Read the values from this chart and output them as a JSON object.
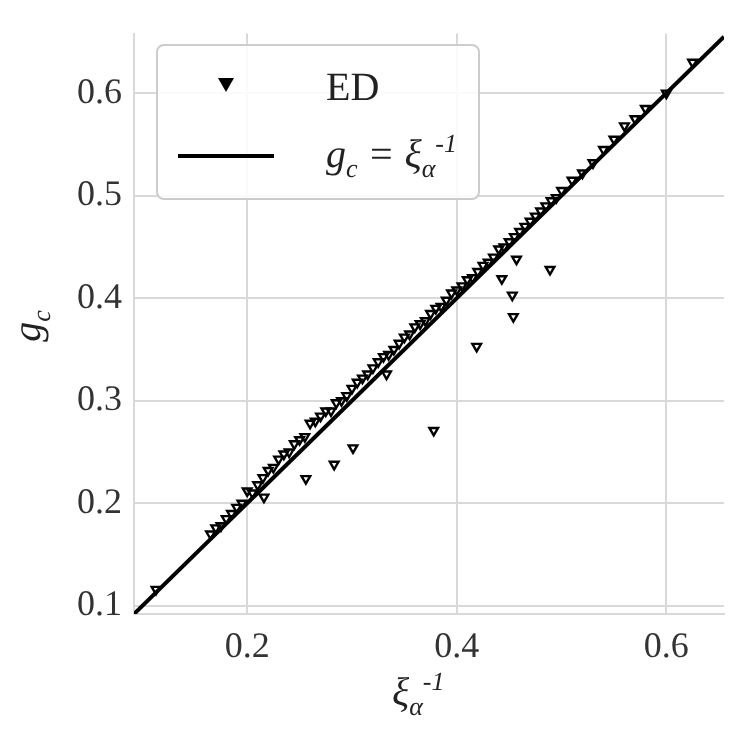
{
  "chart_data": {
    "type": "scatter",
    "xlabel": "ξ$_{α}$$^{-1}$",
    "ylabel": "g$_{c}$",
    "xlim": [
      0.092,
      0.655
    ],
    "ylim": [
      0.092,
      0.658
    ],
    "xticks": [
      0.2,
      0.4,
      0.6
    ],
    "yticks": [
      0.1,
      0.2,
      0.3,
      0.4,
      0.5,
      0.6
    ],
    "grid": true,
    "legend": "top left",
    "series": [
      {
        "name": "ED",
        "marker": "triangle",
        "color": "#000000",
        "x": [
          0.113,
          0.165,
          0.17,
          0.175,
          0.18,
          0.185,
          0.19,
          0.195,
          0.2,
          0.205,
          0.21,
          0.215,
          0.22,
          0.225,
          0.23,
          0.235,
          0.24,
          0.245,
          0.25,
          0.255,
          0.26,
          0.265,
          0.27,
          0.275,
          0.28,
          0.285,
          0.29,
          0.295,
          0.3,
          0.305,
          0.31,
          0.315,
          0.32,
          0.325,
          0.33,
          0.335,
          0.34,
          0.345,
          0.35,
          0.355,
          0.36,
          0.365,
          0.37,
          0.375,
          0.38,
          0.385,
          0.39,
          0.395,
          0.4,
          0.405,
          0.41,
          0.415,
          0.42,
          0.425,
          0.43,
          0.435,
          0.44,
          0.445,
          0.45,
          0.455,
          0.46,
          0.465,
          0.47,
          0.475,
          0.48,
          0.485,
          0.49,
          0.495,
          0.5,
          0.51,
          0.52,
          0.53,
          0.54,
          0.55,
          0.56,
          0.57,
          0.58,
          0.6,
          0.625,
          0.216,
          0.256,
          0.283,
          0.301,
          0.333,
          0.378,
          0.419,
          0.443,
          0.453,
          0.454,
          0.457,
          0.489
        ],
        "values": [
          0.116,
          0.17,
          0.176,
          0.178,
          0.185,
          0.19,
          0.196,
          0.2,
          0.212,
          0.21,
          0.218,
          0.225,
          0.232,
          0.235,
          0.243,
          0.248,
          0.25,
          0.258,
          0.262,
          0.265,
          0.278,
          0.28,
          0.285,
          0.29,
          0.29,
          0.298,
          0.3,
          0.305,
          0.312,
          0.318,
          0.322,
          0.326,
          0.332,
          0.338,
          0.343,
          0.345,
          0.35,
          0.356,
          0.362,
          0.365,
          0.372,
          0.375,
          0.378,
          0.385,
          0.39,
          0.392,
          0.398,
          0.405,
          0.408,
          0.412,
          0.418,
          0.42,
          0.426,
          0.432,
          0.435,
          0.44,
          0.448,
          0.45,
          0.455,
          0.46,
          0.465,
          0.47,
          0.475,
          0.48,
          0.485,
          0.49,
          0.495,
          0.498,
          0.505,
          0.515,
          0.522,
          0.532,
          0.545,
          0.555,
          0.568,
          0.575,
          0.585,
          0.6,
          0.63,
          0.206,
          0.224,
          0.238,
          0.254,
          0.326,
          0.271,
          0.353,
          0.419,
          0.403,
          0.382,
          0.438,
          0.428
        ]
      },
      {
        "name": "g$_{c}$ = ξ$_{α}$$^{-1}$",
        "type": "line",
        "color": "#000000",
        "x": [
          0.092,
          0.655
        ],
        "values": [
          0.092,
          0.655
        ]
      }
    ]
  }
}
